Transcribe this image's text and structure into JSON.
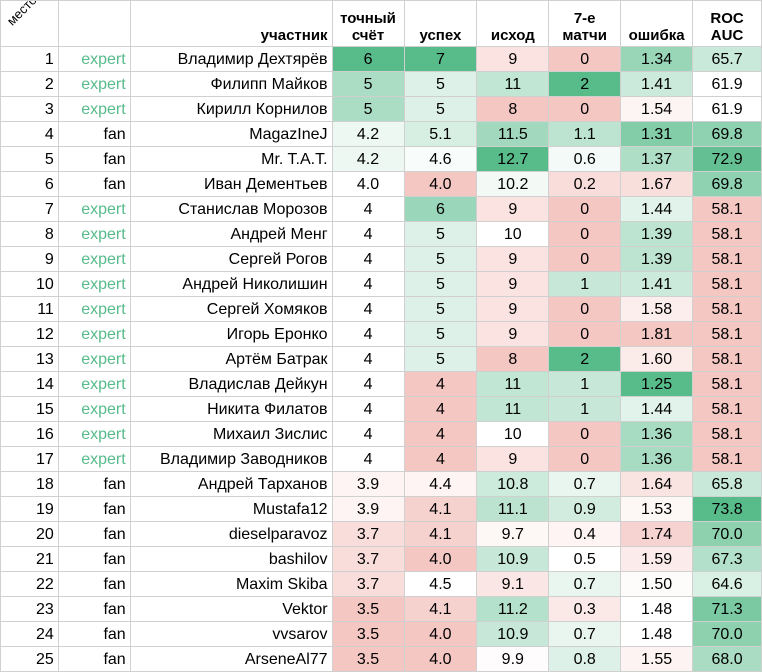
{
  "header": {
    "place": "место",
    "type": "",
    "participant": "участник",
    "exact_score": "точный\nсчёт",
    "success": "успех",
    "outcome": "исход",
    "seventh_matches": "7-е\nматчи",
    "error": "ошибка",
    "roc_auc": "ROC\nAUC"
  },
  "colors": {
    "expert_text": "#57bb8a",
    "scale_high": "#57bb8a",
    "scale_mid": "#ffffff",
    "scale_low": "#f4c7c3"
  },
  "rows": [
    {
      "place": "1",
      "type": "expert",
      "name": "Владимир Дехтярёв",
      "exact": "6",
      "success": "7",
      "outcome": "9",
      "seventh": "0",
      "error": "1.34",
      "roc": "65.7"
    },
    {
      "place": "2",
      "type": "expert",
      "name": "Филипп Майков",
      "exact": "5",
      "success": "5",
      "outcome": "11",
      "seventh": "2",
      "error": "1.41",
      "roc": "61.9"
    },
    {
      "place": "3",
      "type": "expert",
      "name": "Кирилл Корнилов",
      "exact": "5",
      "success": "5",
      "outcome": "8",
      "seventh": "0",
      "error": "1.54",
      "roc": "61.9"
    },
    {
      "place": "4",
      "type": "fan",
      "name": "MagazIneJ",
      "exact": "4.2",
      "success": "5.1",
      "outcome": "11.5",
      "seventh": "1.1",
      "error": "1.31",
      "roc": "69.8"
    },
    {
      "place": "5",
      "type": "fan",
      "name": "Mr. T.A.T.",
      "exact": "4.2",
      "success": "4.6",
      "outcome": "12.7",
      "seventh": "0.6",
      "error": "1.37",
      "roc": "72.9"
    },
    {
      "place": "6",
      "type": "fan",
      "name": "Иван Дементьев",
      "exact": "4.0",
      "success": "4.0",
      "outcome": "10.2",
      "seventh": "0.2",
      "error": "1.67",
      "roc": "69.8"
    },
    {
      "place": "7",
      "type": "expert",
      "name": "Станислав Морозов",
      "exact": "4",
      "success": "6",
      "outcome": "9",
      "seventh": "0",
      "error": "1.44",
      "roc": "58.1"
    },
    {
      "place": "8",
      "type": "expert",
      "name": "Андрей Менг",
      "exact": "4",
      "success": "5",
      "outcome": "10",
      "seventh": "0",
      "error": "1.39",
      "roc": "58.1"
    },
    {
      "place": "9",
      "type": "expert",
      "name": "Сергей Рогов",
      "exact": "4",
      "success": "5",
      "outcome": "9",
      "seventh": "0",
      "error": "1.39",
      "roc": "58.1"
    },
    {
      "place": "10",
      "type": "expert",
      "name": "Андрей Николишин",
      "exact": "4",
      "success": "5",
      "outcome": "9",
      "seventh": "1",
      "error": "1.41",
      "roc": "58.1"
    },
    {
      "place": "11",
      "type": "expert",
      "name": "Сергей Хомяков",
      "exact": "4",
      "success": "5",
      "outcome": "9",
      "seventh": "0",
      "error": "1.58",
      "roc": "58.1"
    },
    {
      "place": "12",
      "type": "expert",
      "name": "Игорь Еронко",
      "exact": "4",
      "success": "5",
      "outcome": "9",
      "seventh": "0",
      "error": "1.81",
      "roc": "58.1"
    },
    {
      "place": "13",
      "type": "expert",
      "name": "Артём Батрак",
      "exact": "4",
      "success": "5",
      "outcome": "8",
      "seventh": "2",
      "error": "1.60",
      "roc": "58.1"
    },
    {
      "place": "14",
      "type": "expert",
      "name": "Владислав Дейкун",
      "exact": "4",
      "success": "4",
      "outcome": "11",
      "seventh": "1",
      "error": "1.25",
      "roc": "58.1"
    },
    {
      "place": "15",
      "type": "expert",
      "name": "Никита Филатов",
      "exact": "4",
      "success": "4",
      "outcome": "11",
      "seventh": "1",
      "error": "1.44",
      "roc": "58.1"
    },
    {
      "place": "16",
      "type": "expert",
      "name": "Михаил Зислис",
      "exact": "4",
      "success": "4",
      "outcome": "10",
      "seventh": "0",
      "error": "1.36",
      "roc": "58.1"
    },
    {
      "place": "17",
      "type": "expert",
      "name": "Владимир Заводников",
      "exact": "4",
      "success": "4",
      "outcome": "9",
      "seventh": "0",
      "error": "1.36",
      "roc": "58.1"
    },
    {
      "place": "18",
      "type": "fan",
      "name": "Андрей Тарханов",
      "exact": "3.9",
      "success": "4.4",
      "outcome": "10.8",
      "seventh": "0.7",
      "error": "1.64",
      "roc": "65.8"
    },
    {
      "place": "19",
      "type": "fan",
      "name": "Mustafa12",
      "exact": "3.9",
      "success": "4.1",
      "outcome": "11.1",
      "seventh": "0.9",
      "error": "1.53",
      "roc": "73.8"
    },
    {
      "place": "20",
      "type": "fan",
      "name": "dieselparavoz",
      "exact": "3.7",
      "success": "4.1",
      "outcome": "9.7",
      "seventh": "0.4",
      "error": "1.74",
      "roc": "70.0"
    },
    {
      "place": "21",
      "type": "fan",
      "name": "bashilov",
      "exact": "3.7",
      "success": "4.0",
      "outcome": "10.9",
      "seventh": "0.5",
      "error": "1.59",
      "roc": "67.3"
    },
    {
      "place": "22",
      "type": "fan",
      "name": "Maxim Skiba",
      "exact": "3.7",
      "success": "4.5",
      "outcome": "9.1",
      "seventh": "0.7",
      "error": "1.50",
      "roc": "64.6"
    },
    {
      "place": "23",
      "type": "fan",
      "name": "Vektor",
      "exact": "3.5",
      "success": "4.1",
      "outcome": "11.2",
      "seventh": "0.3",
      "error": "1.48",
      "roc": "71.3"
    },
    {
      "place": "24",
      "type": "fan",
      "name": "vvsarov",
      "exact": "3.5",
      "success": "4.0",
      "outcome": "10.9",
      "seventh": "0.7",
      "error": "1.48",
      "roc": "70.0"
    },
    {
      "place": "25",
      "type": "fan",
      "name": "ArseneAl77",
      "exact": "3.5",
      "success": "4.0",
      "outcome": "9.9",
      "seventh": "0.8",
      "error": "1.55",
      "roc": "68.0"
    }
  ]
}
